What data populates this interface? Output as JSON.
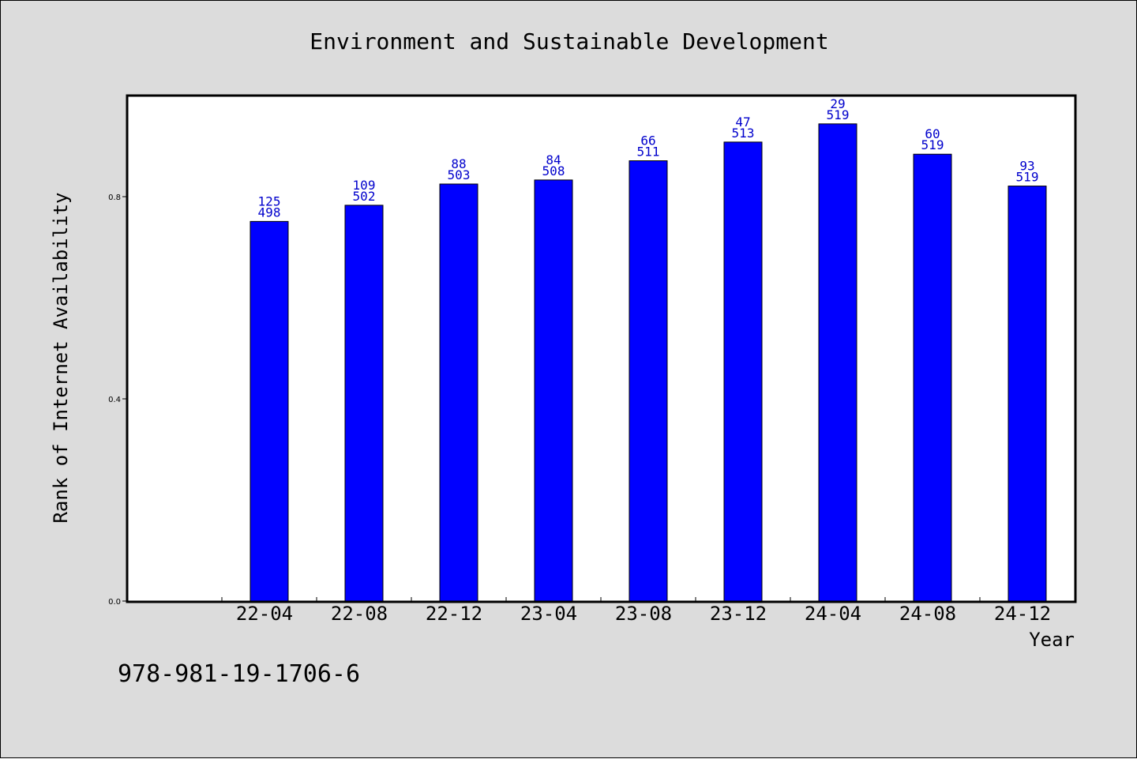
{
  "chart_data": {
    "type": "bar",
    "title": "Environment and Sustainable Development",
    "xlabel": "Year",
    "ylabel": "Rank of Internet Availability",
    "categories": [
      "22-04",
      "22-08",
      "22-12",
      "23-04",
      "23-08",
      "23-12",
      "24-04",
      "24-08",
      "24-12"
    ],
    "values": [
      0.751,
      0.783,
      0.825,
      0.833,
      0.871,
      0.908,
      0.944,
      0.884,
      0.821
    ],
    "label_top": [
      "125",
      "109",
      "88",
      "84",
      "66",
      "47",
      "29",
      "60",
      "93"
    ],
    "label_bottom": [
      "498",
      "502",
      "503",
      "508",
      "511",
      "513",
      "519",
      "519",
      "519"
    ],
    "yticks": [
      "0.0",
      "0.4",
      "0.8"
    ],
    "ylim": [
      0,
      1.0
    ],
    "grid": false,
    "bar_color": "#0000ff",
    "label_color": "#0000cc",
    "background_color": "#dcdcdc",
    "plot_background_color": "#ffffff"
  },
  "footnote": "978-981-19-1706-6"
}
